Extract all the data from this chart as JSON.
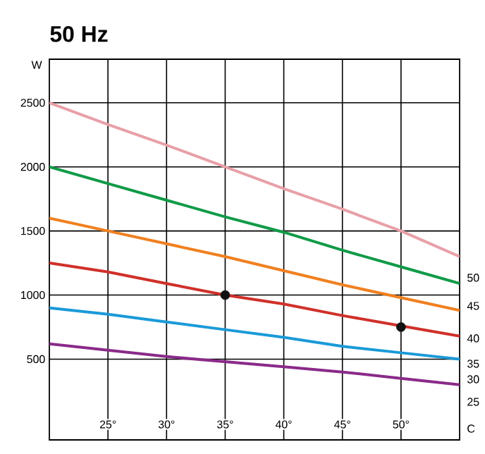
{
  "chart_data": {
    "type": "line",
    "title": "50 Hz",
    "xlabel": "C",
    "ylabel": "W",
    "x": [
      20,
      25,
      30,
      35,
      40,
      45,
      50,
      55
    ],
    "series": [
      {
        "color": "#e8a0a8",
        "values": [
          2500,
          2330,
          2170,
          2000,
          1830,
          1670,
          1500,
          1300
        ]
      },
      {
        "color": "#119a48",
        "values": [
          2000,
          1870,
          1740,
          1610,
          1490,
          1350,
          1220,
          1090
        ]
      },
      {
        "color": "#f08020",
        "values": [
          1600,
          1500,
          1400,
          1300,
          1190,
          1080,
          980,
          880
        ]
      },
      {
        "color": "#d0302a",
        "values": [
          1250,
          1180,
          1090,
          1000,
          930,
          840,
          760,
          680
        ]
      },
      {
        "color": "#1a9ad8",
        "values": [
          900,
          850,
          790,
          730,
          670,
          600,
          550,
          500
        ]
      },
      {
        "color": "#8a2a8a",
        "values": [
          620,
          570,
          520,
          480,
          440,
          400,
          350,
          300
        ]
      },
      {
        "type": "scatter",
        "marker": "circle",
        "color": "#111111",
        "x": [
          35,
          50
        ],
        "values": [
          1000,
          750
        ]
      }
    ],
    "xlim": [
      20,
      55
    ],
    "ylim": [
      -130,
      2840
    ],
    "xticks": [
      {
        "value": 25,
        "label": "25°"
      },
      {
        "value": 30,
        "label": "30°"
      },
      {
        "value": 35,
        "label": "35°"
      },
      {
        "value": 40,
        "label": "40°"
      },
      {
        "value": 45,
        "label": "45°"
      },
      {
        "value": 50,
        "label": "50°"
      }
    ],
    "yticks": [
      500,
      1000,
      1500,
      2000,
      2500
    ],
    "grid": true,
    "annotations": [
      "50",
      "45",
      "40",
      "35",
      "30",
      "25"
    ]
  }
}
